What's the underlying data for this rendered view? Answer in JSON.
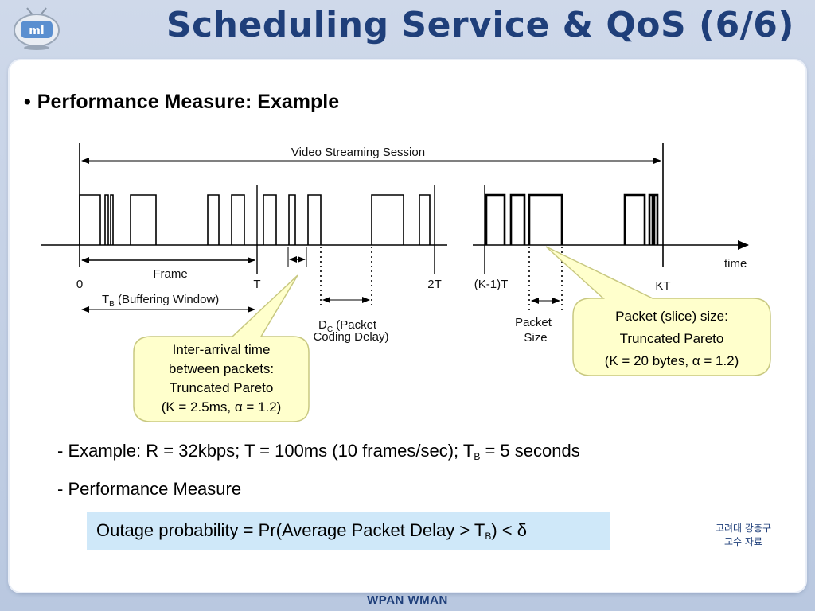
{
  "slide": {
    "title": "Scheduling Service & QoS (6/6)",
    "logo_icon": "ml-logo-icon",
    "heading_bullet": "•",
    "heading": "Performance Measure: Example",
    "footer": "WPAN WMAN",
    "credit_line1": "고려대 강충구",
    "credit_line2": "교수 자료"
  },
  "diagram": {
    "session_label": "Video Streaming Session",
    "frame_label": "Frame",
    "tb_label": "T",
    "tb_sub": "B",
    "tb_rest": " (Buffering Window)",
    "time_label": "time",
    "tick_0": "0",
    "tick_T": "T",
    "tick_2T": "2T",
    "tick_K1T": "(K-1)T",
    "tick_KT": "KT",
    "dc_D": "D",
    "dc_sub": "C",
    "dc_rest": " (Packet",
    "dc_line2": "Coding Delay)",
    "packet_size_line1": "Packet",
    "packet_size_line2": "Size"
  },
  "callout_left": {
    "line1": "Inter-arrival time",
    "line2": "between packets:",
    "line3": "Truncated Pareto",
    "line4_pre": "(K = 2.5ms, ",
    "alpha": "α",
    "line4_post": " = 1.2)"
  },
  "callout_right": {
    "line1": "Packet (slice) size:",
    "line2": "Truncated Pareto",
    "line3_pre": "(K = 20 bytes, ",
    "alpha": "α",
    "line3_post": " = 1.2)"
  },
  "example": {
    "prefix": "- Example: R = 32kbps; T = 100ms (10 frames/sec); T",
    "sub": "B",
    "suffix": " = 5 seconds"
  },
  "measure": {
    "label": "- Performance Measure"
  },
  "outage": {
    "prefix": "Outage probability = Pr(Average Packet Delay > T",
    "sub": "B",
    "mid": ") < ",
    "delta": "δ"
  }
}
